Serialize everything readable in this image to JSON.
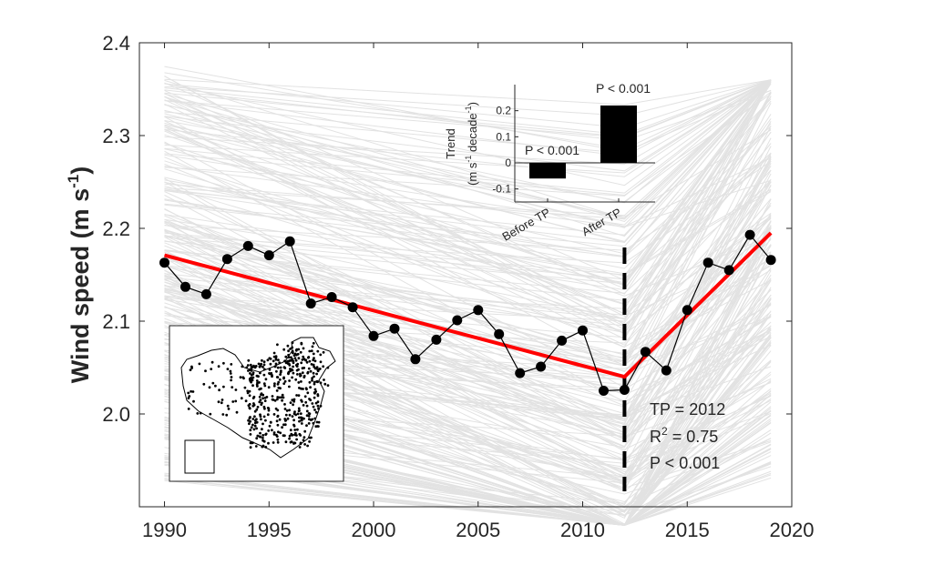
{
  "chart_data": [
    {
      "type": "line",
      "xlabel": "",
      "ylabel": "Wind speed (m s",
      "ylabel_sup": "-1",
      "ylabel_close": ")",
      "xlim": [
        1988.8,
        2020
      ],
      "ylim": [
        1.9,
        2.4
      ],
      "xticks": [
        1990,
        1995,
        2000,
        2005,
        2010,
        2015,
        2020
      ],
      "yticks": [
        2.0,
        2.1,
        2.2,
        2.3,
        2.4
      ],
      "ytick_labels": [
        "2.0",
        "2.1",
        "2.2",
        "2.3",
        "2.4"
      ],
      "background_lines": "many light gray station-level fitted trend lines",
      "colors": {
        "background_lines": "#e2e2e2",
        "fit": "#ff0000",
        "points": "#000000",
        "tp_line": "#000000"
      },
      "series": [
        {
          "x": [
            1990,
            1991,
            1992,
            1993,
            1994,
            1995,
            1996,
            1997,
            1998,
            1999,
            2000,
            2001,
            2002,
            2003,
            2004,
            2005,
            2006,
            2007,
            2008,
            2009,
            2010,
            2011,
            2012,
            2013,
            2014,
            2015,
            2016,
            2017,
            2018,
            2019
          ],
          "values": [
            2.163,
            2.137,
            2.129,
            2.167,
            2.181,
            2.171,
            2.186,
            2.119,
            2.126,
            2.115,
            2.084,
            2.092,
            2.059,
            2.08,
            2.101,
            2.112,
            2.086,
            2.044,
            2.051,
            2.079,
            2.09,
            2.025,
            2.026,
            2.067,
            2.047,
            2.112,
            2.163,
            2.155,
            2.193,
            2.166
          ]
        },
        {
          "x": [
            1990,
            2012,
            2019
          ],
          "values": [
            2.171,
            2.04,
            2.195
          ]
        }
      ],
      "tp_x": 2012,
      "annotations": {
        "tp": "TP = 2012",
        "r2_prefix": "R",
        "r2_sup": "2",
        "r2_value": " = 0.75",
        "p": "P < 0.001"
      }
    },
    {
      "type": "bar",
      "categories": [
        "Before TP",
        "After TP"
      ],
      "values": [
        -0.06,
        0.22
      ],
      "ylim": [
        -0.15,
        0.3
      ],
      "yticks": [
        -0.1,
        0,
        0.1,
        0.2
      ],
      "ytick_labels": [
        "-0.1",
        "0",
        "0.1",
        "0.2"
      ],
      "ylabel_line1": "Trend",
      "ylabel_line2_a": "(m s",
      "ylabel_line2_sup1": "-1",
      "ylabel_line2_b": " decade",
      "ylabel_line2_sup2": "-1",
      "ylabel_line2_c": ")",
      "bar_labels": [
        "P < 0.001",
        "P < 0.001"
      ],
      "colors": {
        "bars": "#000000"
      }
    }
  ],
  "map_inset": {
    "content": "station map of China"
  }
}
